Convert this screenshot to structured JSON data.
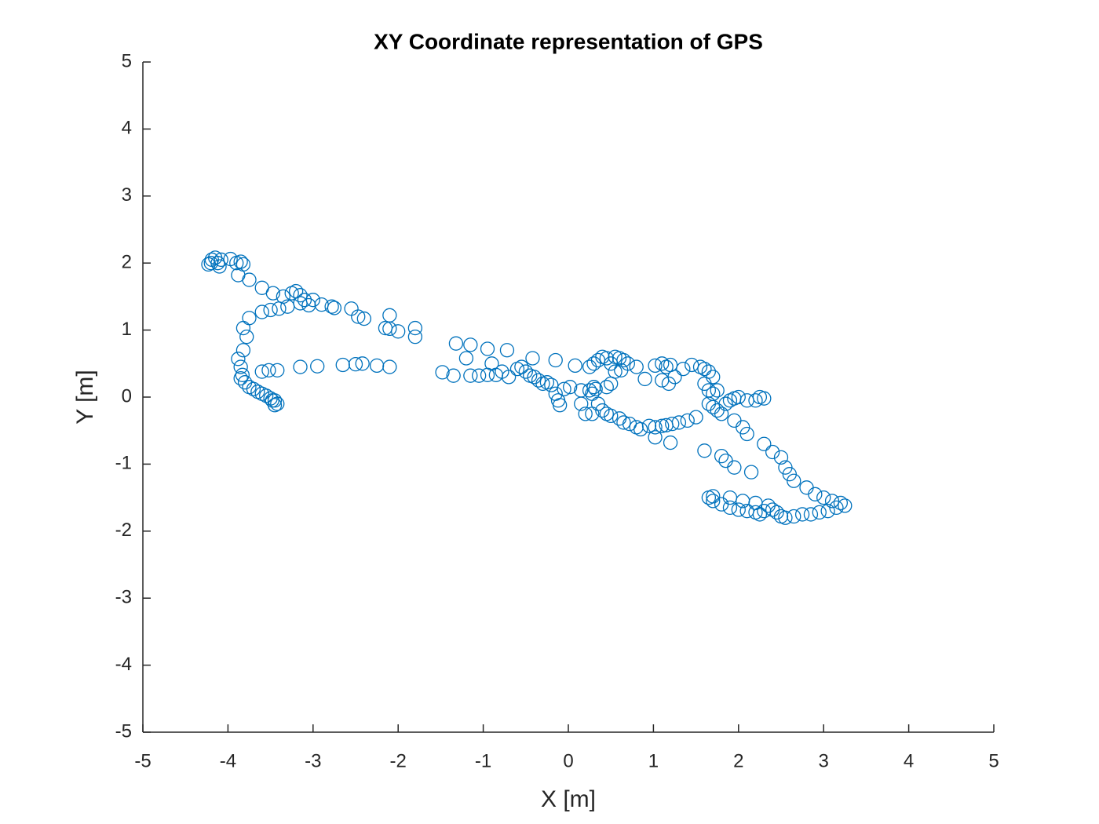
{
  "chart_data": {
    "type": "scatter",
    "title": "XY Coordinate representation of GPS",
    "x_label": "X [m]",
    "y_label": "Y [m]",
    "xlim": [
      -5,
      5
    ],
    "ylim": [
      -5,
      5
    ],
    "xticks": [
      -5,
      -4,
      -3,
      -2,
      -1,
      0,
      1,
      2,
      3,
      4,
      5
    ],
    "yticks": [
      -5,
      -4,
      -3,
      -2,
      -1,
      0,
      1,
      2,
      3,
      4,
      5
    ],
    "grid": false,
    "series": [
      {
        "color": "#0072bd",
        "x": [
          -4.23,
          -4.19,
          -4.15,
          -4.12,
          -4.08,
          -3.97,
          -3.9,
          -3.85,
          -3.82,
          -4.2,
          -4.1,
          -3.88,
          -3.75,
          -3.6,
          -3.47,
          -3.35,
          -3.25,
          -3.2,
          -3.15,
          -3.1,
          -3.0,
          -2.9,
          -2.78,
          -2.75,
          -2.55,
          -2.47,
          -2.4,
          -2.1,
          -2.15,
          -2.1,
          -2.0,
          -1.8,
          -1.8,
          -3.05,
          -3.15,
          -3.3,
          -3.4,
          -3.5,
          -3.6,
          -3.75,
          -3.82,
          -3.78,
          -3.82,
          -3.88,
          -3.85,
          -3.83,
          -3.85,
          -3.8,
          -3.75,
          -3.7,
          -3.65,
          -3.6,
          -3.55,
          -3.5,
          -3.45,
          -3.42,
          -3.45,
          -3.48,
          -3.6,
          -3.52,
          -3.42,
          -3.15,
          -2.95,
          -2.65,
          -2.5,
          -2.42,
          -2.25,
          -2.1,
          -1.48,
          -1.35,
          -1.32,
          -1.2,
          -1.15,
          -1.15,
          -1.05,
          -0.95,
          -0.95,
          -0.9,
          -0.85,
          -0.78,
          -0.72,
          -0.7,
          -0.6,
          -0.55,
          -0.5,
          -0.45,
          -0.4,
          -0.35,
          -0.3,
          -0.25,
          -0.42,
          -0.15,
          -0.2,
          -0.15,
          -0.12,
          -0.1,
          -0.05,
          0.02,
          0.08,
          0.15,
          0.15,
          0.2,
          0.25,
          0.28,
          0.3,
          0.32,
          0.35,
          0.28,
          0.25,
          0.3,
          0.35,
          0.4,
          0.45,
          0.5,
          0.55,
          0.6,
          0.65,
          0.7,
          0.55,
          0.62,
          0.5,
          0.45,
          0.4,
          0.45,
          0.5,
          0.6,
          0.65,
          0.72,
          0.8,
          0.85,
          0.95,
          1.02,
          1.1,
          1.15,
          1.22,
          1.02,
          1.2,
          0.8,
          0.9,
          1.02,
          1.1,
          1.15,
          1.2,
          1.1,
          1.18,
          1.25,
          1.35,
          1.45,
          1.55,
          1.6,
          1.65,
          1.7,
          1.6,
          1.65,
          1.7,
          1.75,
          1.65,
          1.7,
          1.75,
          1.8,
          1.5,
          1.4,
          1.3,
          1.85,
          1.9,
          1.95,
          2.0,
          2.1,
          2.2,
          2.25,
          2.3,
          1.95,
          2.05,
          2.1,
          2.3,
          2.4,
          2.5,
          2.55,
          2.6,
          2.65,
          2.8,
          2.9,
          3.0,
          3.1,
          3.2,
          3.25,
          3.15,
          3.05,
          2.95,
          2.85,
          2.75,
          2.65,
          2.55,
          2.5,
          2.45,
          2.4,
          2.35,
          2.3,
          2.25,
          2.2,
          2.1,
          2.0,
          1.9,
          1.8,
          1.7,
          1.65,
          1.7,
          1.9,
          2.05,
          2.2,
          1.6,
          1.8,
          1.85,
          1.95,
          2.15
        ],
        "y": [
          1.98,
          2.05,
          2.08,
          2.0,
          2.05,
          2.06,
          2.0,
          2.02,
          1.98,
          2.0,
          1.95,
          1.82,
          1.75,
          1.63,
          1.55,
          1.5,
          1.55,
          1.58,
          1.52,
          1.45,
          1.45,
          1.38,
          1.35,
          1.33,
          1.32,
          1.2,
          1.17,
          1.22,
          1.03,
          1.02,
          0.98,
          1.03,
          0.9,
          1.37,
          1.4,
          1.35,
          1.32,
          1.3,
          1.27,
          1.18,
          1.03,
          0.9,
          0.7,
          0.57,
          0.45,
          0.33,
          0.28,
          0.22,
          0.15,
          0.12,
          0.08,
          0.05,
          0.02,
          -0.02,
          -0.05,
          -0.1,
          -0.12,
          -0.05,
          0.38,
          0.4,
          0.4,
          0.45,
          0.46,
          0.48,
          0.49,
          0.5,
          0.47,
          0.45,
          0.37,
          0.32,
          0.8,
          0.58,
          0.78,
          0.32,
          0.32,
          0.33,
          0.72,
          0.5,
          0.33,
          0.38,
          0.7,
          0.3,
          0.42,
          0.45,
          0.38,
          0.32,
          0.3,
          0.25,
          0.2,
          0.22,
          0.58,
          0.55,
          0.18,
          0.05,
          -0.05,
          -0.12,
          0.12,
          0.15,
          0.47,
          0.1,
          -0.1,
          -0.25,
          0.1,
          0.05,
          0.15,
          0.12,
          -0.1,
          -0.25,
          0.45,
          0.5,
          0.55,
          0.6,
          0.58,
          0.5,
          0.6,
          0.58,
          0.55,
          0.5,
          0.38,
          0.4,
          0.2,
          0.15,
          -0.2,
          -0.25,
          -0.28,
          -0.32,
          -0.38,
          -0.4,
          -0.45,
          -0.48,
          -0.43,
          -0.45,
          -0.43,
          -0.42,
          -0.4,
          -0.6,
          -0.68,
          0.45,
          0.27,
          0.47,
          0.5,
          0.45,
          0.48,
          0.25,
          0.2,
          0.3,
          0.42,
          0.48,
          0.45,
          0.42,
          0.38,
          0.3,
          0.2,
          0.1,
          0.05,
          0.1,
          -0.1,
          -0.15,
          -0.2,
          -0.25,
          -0.3,
          -0.35,
          -0.38,
          -0.1,
          -0.05,
          -0.02,
          0.0,
          -0.05,
          -0.05,
          0.0,
          -0.02,
          -0.35,
          -0.45,
          -0.55,
          -0.7,
          -0.82,
          -0.9,
          -1.05,
          -1.15,
          -1.25,
          -1.35,
          -1.45,
          -1.5,
          -1.55,
          -1.58,
          -1.62,
          -1.65,
          -1.7,
          -1.72,
          -1.75,
          -1.75,
          -1.78,
          -1.8,
          -1.78,
          -1.72,
          -1.68,
          -1.62,
          -1.7,
          -1.75,
          -1.72,
          -1.7,
          -1.68,
          -1.65,
          -1.6,
          -1.55,
          -1.5,
          -1.48,
          -1.5,
          -1.55,
          -1.58,
          -0.8,
          -0.88,
          -0.95,
          -1.05,
          -1.12
        ]
      }
    ]
  }
}
